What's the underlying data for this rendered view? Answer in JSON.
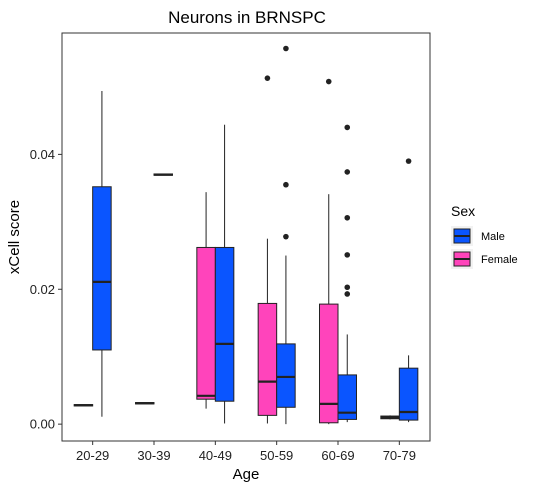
{
  "chart_data": {
    "type": "boxplot",
    "title": "Neurons in BRNSPC",
    "xlabel": "Age",
    "ylabel": "xCell score",
    "categories": [
      "20-29",
      "30-39",
      "40-49",
      "50-59",
      "60-69",
      "70-79"
    ],
    "y_ticks": [
      "0.00",
      "0.02",
      "0.04"
    ],
    "y_tick_values": [
      0.0,
      0.02,
      0.04
    ],
    "ylim": [
      -0.0025,
      0.058
    ],
    "legend": {
      "title": "Sex",
      "entries": [
        "Male",
        "Female"
      ],
      "placement": "right"
    },
    "grid": false,
    "series": [
      {
        "name": "Female",
        "color": "#FF44BB",
        "boxes": [
          {
            "category": "20-29",
            "q1": 0.0027,
            "median": 0.0028,
            "q3": 0.0029,
            "whisker_low": 0.0027,
            "whisker_high": 0.0029,
            "outliers": []
          },
          {
            "category": "30-39",
            "q1": 0.003,
            "median": 0.0031,
            "q3": 0.0032,
            "whisker_low": 0.003,
            "whisker_high": 0.0032,
            "outliers": []
          },
          {
            "category": "40-49",
            "q1": 0.0037,
            "median": 0.0042,
            "q3": 0.0262,
            "whisker_low": 0.0023,
            "whisker_high": 0.0344,
            "outliers": []
          },
          {
            "category": "50-59",
            "q1": 0.0013,
            "median": 0.0063,
            "q3": 0.0179,
            "whisker_low": 0.0001,
            "whisker_high": 0.0275,
            "outliers": [
              0.0513
            ]
          },
          {
            "category": "60-69",
            "q1": 0.0002,
            "median": 0.003,
            "q3": 0.0178,
            "whisker_low": 0.0,
            "whisker_high": 0.0341,
            "outliers": [
              0.0508
            ]
          },
          {
            "category": "70-79",
            "q1": 0.0008,
            "median": 0.001,
            "q3": 0.0012,
            "whisker_low": 0.0007,
            "whisker_high": 0.0013,
            "outliers": []
          }
        ]
      },
      {
        "name": "Male",
        "color": "#0A55FF",
        "boxes": [
          {
            "category": "20-29",
            "q1": 0.011,
            "median": 0.0211,
            "q3": 0.0352,
            "whisker_low": 0.0011,
            "whisker_high": 0.0494,
            "outliers": []
          },
          {
            "category": "30-39",
            "q1": 0.0369,
            "median": 0.037,
            "q3": 0.0371,
            "whisker_low": 0.0369,
            "whisker_high": 0.0371,
            "outliers": []
          },
          {
            "category": "40-49",
            "q1": 0.0034,
            "median": 0.0119,
            "q3": 0.0262,
            "whisker_low": 0.0001,
            "whisker_high": 0.0444,
            "outliers": []
          },
          {
            "category": "50-59",
            "q1": 0.0025,
            "median": 0.007,
            "q3": 0.0119,
            "whisker_low": 0.0,
            "whisker_high": 0.025,
            "outliers": [
              0.0278,
              0.0355,
              0.0557
            ]
          },
          {
            "category": "60-69",
            "q1": 0.0007,
            "median": 0.0017,
            "q3": 0.0073,
            "whisker_low": 0.0003,
            "whisker_high": 0.0133,
            "outliers": [
              0.0193,
              0.0203,
              0.0251,
              0.0306,
              0.0374,
              0.044
            ]
          },
          {
            "category": "70-79",
            "q1": 0.0006,
            "median": 0.0018,
            "q3": 0.0083,
            "whisker_low": 0.0003,
            "whisker_high": 0.0102,
            "outliers": [
              0.039
            ]
          }
        ]
      }
    ]
  }
}
